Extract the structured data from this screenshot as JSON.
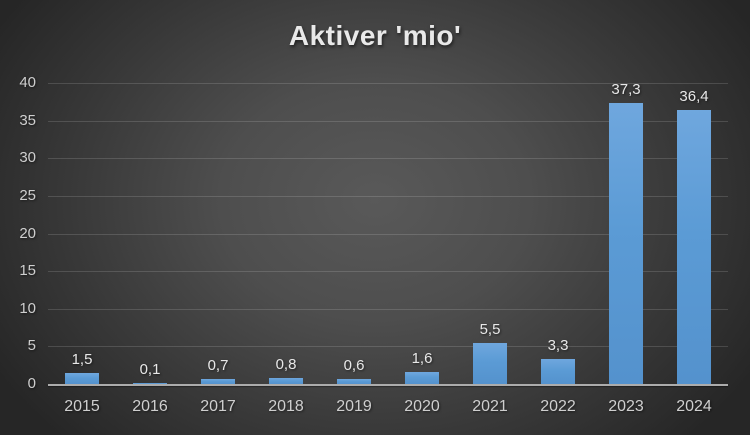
{
  "title": "Aktiver 'mio'",
  "chart_data": {
    "type": "bar",
    "title": "Aktiver 'mio'",
    "categories": [
      "2015",
      "2016",
      "2017",
      "2018",
      "2019",
      "2020",
      "2021",
      "2022",
      "2023",
      "2024"
    ],
    "values": [
      1.5,
      0.1,
      0.7,
      0.8,
      0.6,
      1.6,
      5.5,
      3.3,
      37.3,
      36.4
    ],
    "value_labels": [
      "1,5",
      "0,1",
      "0,7",
      "0,8",
      "0,6",
      "1,6",
      "5,5",
      "3,3",
      "37,3",
      "36,4"
    ],
    "xlabel": "",
    "ylabel": "",
    "ylim": [
      0,
      40
    ],
    "yticks": [
      0,
      5,
      10,
      15,
      20,
      25,
      30,
      35,
      40
    ],
    "grid": true,
    "legend": false,
    "decimal_separator": ",",
    "colors": {
      "bar": "#5b9bd5",
      "bar_top": "#6fa7de",
      "title_text": "#e9e9e9",
      "axis_text": "#cfcfcf",
      "data_label_text": "#e8e8e8",
      "gridline": "rgba(255,255,255,0.14)",
      "axis_line": "#acacac",
      "background_center": "#575757",
      "background_corner": "#262626"
    }
  }
}
